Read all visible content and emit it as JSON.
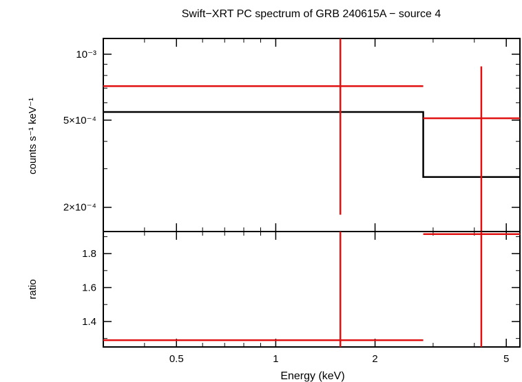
{
  "chart_data": {
    "type": "spectrum",
    "title": "Swift−XRT PC spectrum of GRB 240615A − source 4",
    "xlabel": "Energy (keV)",
    "x_scale": "log",
    "xlim": [
      0.3,
      5.5
    ],
    "x_ticks": [
      {
        "value": 0.5,
        "label": "0.5"
      },
      {
        "value": 1,
        "label": "1"
      },
      {
        "value": 2,
        "label": "2"
      },
      {
        "value": 5,
        "label": "5"
      }
    ],
    "grid": false,
    "panels": [
      {
        "name": "spectrum",
        "ylabel": "counts s⁻¹ keV⁻¹",
        "y_scale": "log",
        "ylim": [
          0.000155,
          0.00118
        ],
        "y_ticks": [
          {
            "value": 0.001,
            "label": "10⁻³"
          },
          {
            "value": 0.0005,
            "label": "5×10⁻⁴"
          },
          {
            "value": 0.0002,
            "label": "2×10⁻⁴"
          }
        ],
        "data": [
          {
            "x": 1.57,
            "x_lo": 0.3,
            "x_hi": 2.8,
            "y": 0.000715,
            "y_lo": 0.000185,
            "y_hi": 0.00118
          },
          {
            "x": 4.2,
            "x_lo": 2.8,
            "x_hi": 5.5,
            "y": 0.00051,
            "y_lo": 0.000155,
            "y_hi": 0.00088
          }
        ],
        "model": [
          {
            "x_lo": 0.3,
            "x_hi": 2.8,
            "y": 0.000545
          },
          {
            "x_lo": 2.8,
            "x_hi": 5.5,
            "y": 0.000275
          }
        ]
      },
      {
        "name": "ratio",
        "ylabel": "ratio",
        "y_scale": "linear",
        "ylim": [
          1.25,
          1.93
        ],
        "y_ticks": [
          {
            "value": 1.4,
            "label": "1.4"
          },
          {
            "value": 1.6,
            "label": "1.6"
          },
          {
            "value": 1.8,
            "label": "1.8"
          }
        ],
        "data": [
          {
            "x": 1.57,
            "x_lo": 0.3,
            "x_hi": 2.8,
            "y": 1.29,
            "y_lo": 1.25,
            "y_hi": 1.93
          },
          {
            "x": 4.2,
            "x_lo": 2.8,
            "x_hi": 5.5,
            "y": 1.915,
            "y_lo": 1.25,
            "y_hi": 1.93
          }
        ]
      }
    ],
    "colors": {
      "data": "#e01010",
      "model": "#000000",
      "axes": "#000000"
    }
  }
}
